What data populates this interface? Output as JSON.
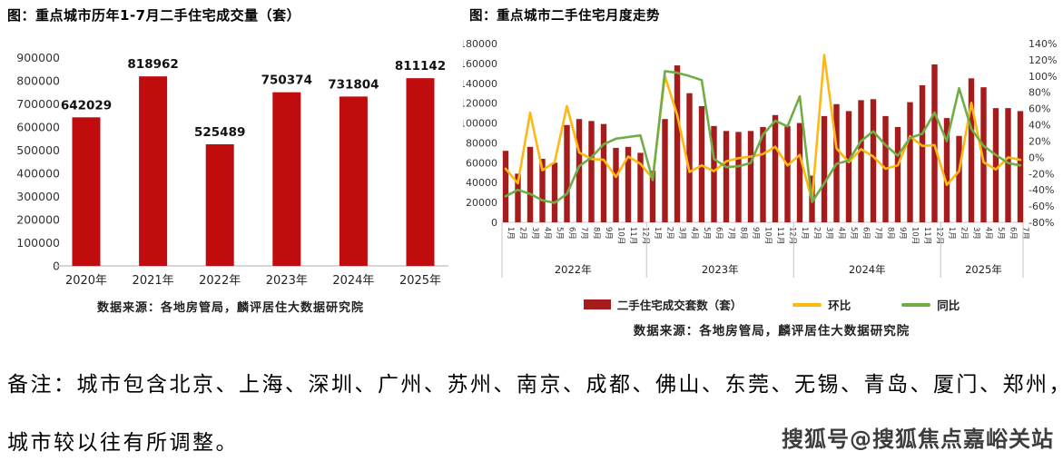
{
  "page": {
    "note_line1": "备注：城市包含北京、上海、深圳、广州、苏州、南京、成都、佛山、东莞、无锡、青岛、厦门、郑州，",
    "note_line2": "城市较以往有所调整。",
    "watermark": "搜狐号@搜狐焦点嘉峪关站"
  },
  "chart_data": [
    {
      "type": "bar",
      "title": "图：重点城市历年1-7月二手住宅成交量（套）",
      "categories": [
        "2020年",
        "2021年",
        "2022年",
        "2023年",
        "2024年",
        "2025年"
      ],
      "values": [
        642029,
        818962,
        525489,
        750374,
        731804,
        811142
      ],
      "data_labels": [
        642029,
        818962,
        525489,
        750374,
        731804,
        811142
      ],
      "ylabel": "",
      "xlabel": "",
      "ylim": [
        0,
        900000
      ],
      "ytick_step": 100000,
      "grid": false,
      "bar_color": "#c00c0c",
      "axis_text_color": "#333333",
      "source": "数据来源：各地房管局，麟评居住大数据研究院"
    },
    {
      "type": "combo",
      "title": "图：重点城市二手住宅月度走势",
      "year_groups": [
        {
          "label": "2022年",
          "months": 12
        },
        {
          "label": "2023年",
          "months": 12
        },
        {
          "label": "2024年",
          "months": 12
        },
        {
          "label": "2025年",
          "months": 7
        }
      ],
      "month_suffix": "月",
      "left_axis": {
        "min": 0,
        "max": 180000,
        "step": 20000
      },
      "right_axis": {
        "min": -80,
        "max": 140,
        "step": 20,
        "suffix": "%"
      },
      "grid": false,
      "legend_position": "bottom",
      "series": [
        {
          "name": "二手住宅成交套数（套）",
          "type": "bar",
          "axis": "left",
          "color": "#a61c1c",
          "values": [
            72000,
            49000,
            76000,
            64000,
            60000,
            98000,
            104000,
            102000,
            99000,
            75000,
            76000,
            70000,
            52000,
            104000,
            158000,
            130000,
            117000,
            97000,
            92000,
            91000,
            92000,
            96000,
            108000,
            97000,
            100000,
            47000,
            107000,
            119000,
            112000,
            123000,
            124000,
            107000,
            96000,
            121000,
            138000,
            159000,
            105000,
            87000,
            145000,
            136000,
            115000,
            115000,
            112000
          ]
        },
        {
          "name": "环比",
          "type": "line",
          "axis": "right",
          "color": "#fdb913",
          "values": [
            -14,
            -32,
            55,
            -16,
            -6,
            63,
            6,
            -2,
            -3,
            -24,
            1,
            -8,
            -26,
            100,
            52,
            -18,
            -10,
            -17,
            -5,
            -1,
            1,
            4,
            13,
            -10,
            3,
            -53,
            126,
            11,
            -6,
            10,
            1,
            -14,
            -10,
            26,
            14,
            15,
            -34,
            -17,
            67,
            -6,
            -15,
            0,
            -3
          ]
        },
        {
          "name": "同比",
          "type": "line",
          "axis": "right",
          "color": "#70ad47",
          "values": [
            -48,
            -40,
            -45,
            -53,
            -56,
            -45,
            -11,
            0,
            16,
            23,
            25,
            27,
            -28,
            106,
            104,
            100,
            95,
            -2,
            -12,
            -11,
            -7,
            28,
            45,
            38,
            75,
            -55,
            -32,
            -8,
            -4,
            20,
            32,
            15,
            2,
            24,
            29,
            55,
            20,
            85,
            35,
            14,
            3,
            -7,
            -10
          ]
        }
      ],
      "source": "数据来源：各地房管局，麟评居住大数据研究院"
    }
  ]
}
